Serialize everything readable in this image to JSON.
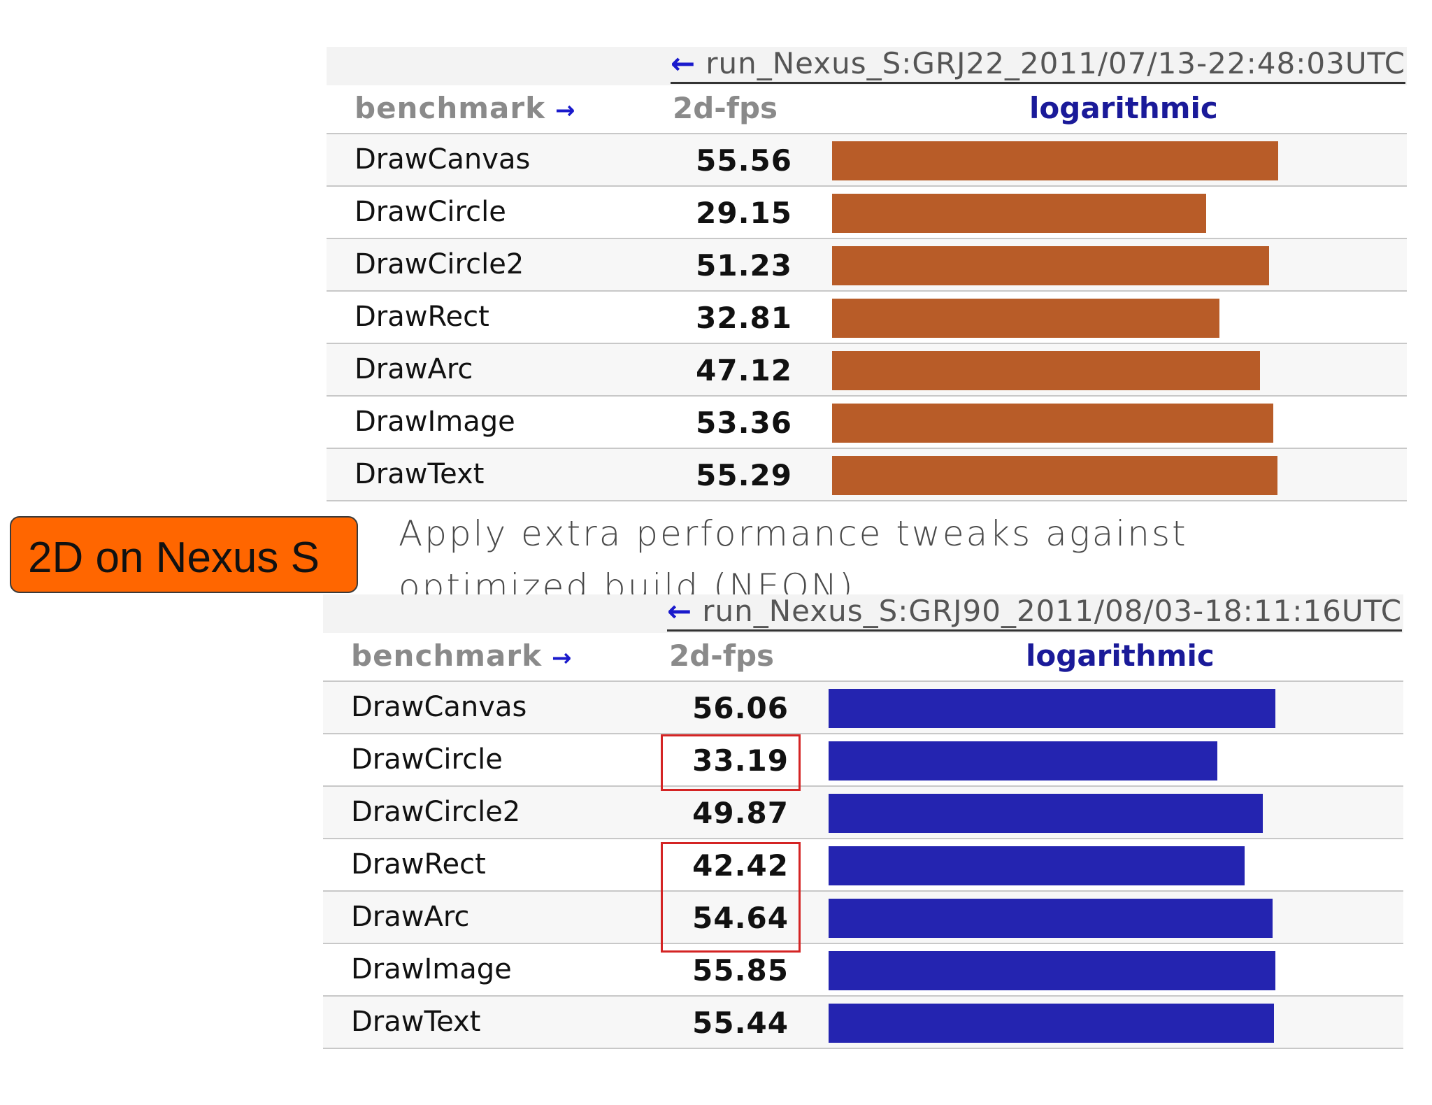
{
  "label_box": {
    "text": "2D on Nexus S"
  },
  "caption": "Apply extra performance tweaks against optimized build (NEON)",
  "column_headers": {
    "benchmark": "benchmark",
    "metric": "2d-fps",
    "scale": "logarithmic"
  },
  "colors": {
    "top_bar": "#b85c28",
    "bottom_bar": "#2424b0",
    "highlight": "#d42424",
    "label_box": "#ff6600"
  },
  "chart_data": [
    {
      "type": "bar",
      "title": "run_Nexus_S:GRJ22_2011/07/13-22:48:03UTC",
      "xlabel": "benchmark",
      "ylabel": "2d-fps",
      "scale": "logarithmic",
      "ylim": [
        1,
        60
      ],
      "categories": [
        "DrawCanvas",
        "DrawCircle",
        "DrawCircle2",
        "DrawRect",
        "DrawArc",
        "DrawImage",
        "DrawText"
      ],
      "values": [
        55.56,
        29.15,
        51.23,
        32.81,
        47.12,
        53.36,
        55.29
      ],
      "value_labels": [
        "55.56",
        "29.15",
        "51.23",
        "32.81",
        "47.12",
        "53.36",
        "55.29"
      ],
      "color": "#b85c28"
    },
    {
      "type": "bar",
      "title": "run_Nexus_S:GRJ90_2011/08/03-18:11:16UTC",
      "xlabel": "benchmark",
      "ylabel": "2d-fps",
      "scale": "logarithmic",
      "ylim": [
        1,
        60
      ],
      "categories": [
        "DrawCanvas",
        "DrawCircle",
        "DrawCircle2",
        "DrawRect",
        "DrawArc",
        "DrawImage",
        "DrawText"
      ],
      "values": [
        56.06,
        33.19,
        49.87,
        42.42,
        54.64,
        55.85,
        55.44
      ],
      "value_labels": [
        "56.06",
        "33.19",
        "49.87",
        "42.42",
        "54.64",
        "55.85",
        "55.44"
      ],
      "color": "#2424b0",
      "highlighted": [
        "DrawCircle",
        "DrawRect",
        "DrawArc"
      ]
    }
  ]
}
